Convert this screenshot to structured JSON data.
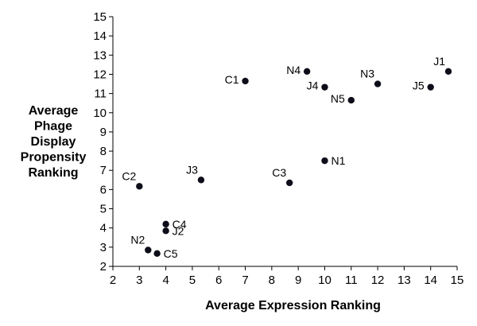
{
  "chart_data": {
    "type": "scatter",
    "xlabel": "Average Expression Ranking",
    "ylabel": [
      "Average",
      "Phage",
      "Display",
      "Propensity",
      "Ranking"
    ],
    "xlim": [
      2,
      15
    ],
    "ylim": [
      2,
      15
    ],
    "xticks": [
      2,
      3,
      4,
      5,
      6,
      7,
      8,
      9,
      10,
      11,
      12,
      13,
      14,
      15
    ],
    "yticks": [
      2,
      3,
      4,
      5,
      6,
      7,
      8,
      9,
      10,
      11,
      12,
      13,
      14,
      15
    ],
    "grid": false,
    "marker_color": "#0d0d1a",
    "points": [
      {
        "label": "C1",
        "x": 7.0,
        "y": 11.65,
        "anchor": "left"
      },
      {
        "label": "N4",
        "x": 9.33,
        "y": 12.15,
        "anchor": "left"
      },
      {
        "label": "J4",
        "x": 10.0,
        "y": 11.33,
        "anchor": "left"
      },
      {
        "label": "N3",
        "x": 12.0,
        "y": 11.5,
        "anchor": "upper-left"
      },
      {
        "label": "J1",
        "x": 14.67,
        "y": 12.15,
        "anchor": "upper-left"
      },
      {
        "label": "J5",
        "x": 14.0,
        "y": 11.33,
        "anchor": "left"
      },
      {
        "label": "N5",
        "x": 11.0,
        "y": 10.65,
        "anchor": "left"
      },
      {
        "label": "N1",
        "x": 10.0,
        "y": 7.5,
        "anchor": "right"
      },
      {
        "label": "C3",
        "x": 8.67,
        "y": 6.35,
        "anchor": "upper-left"
      },
      {
        "label": "J3",
        "x": 5.33,
        "y": 6.5,
        "anchor": "upper-left"
      },
      {
        "label": "C2",
        "x": 3.0,
        "y": 6.17,
        "anchor": "upper-left"
      },
      {
        "label": "C4",
        "x": 4.0,
        "y": 4.2,
        "anchor": "right"
      },
      {
        "label": "J2",
        "x": 4.0,
        "y": 3.85,
        "anchor": "right"
      },
      {
        "label": "N2",
        "x": 3.33,
        "y": 2.85,
        "anchor": "upper-left"
      },
      {
        "label": "C5",
        "x": 3.67,
        "y": 2.67,
        "anchor": "right"
      }
    ]
  }
}
